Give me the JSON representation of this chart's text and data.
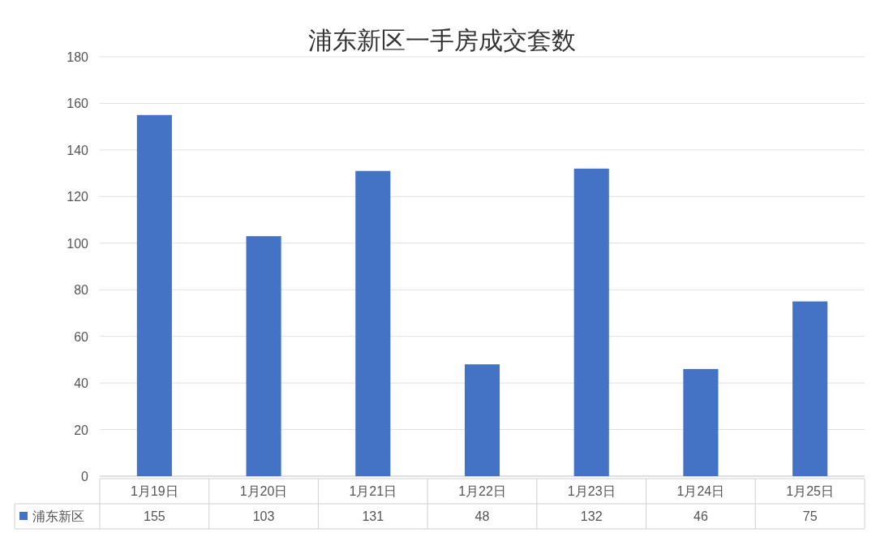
{
  "chart_data": {
    "type": "bar",
    "title": "浦东新区一手房成交套数",
    "categories": [
      "1月19日",
      "1月20日",
      "1月21日",
      "1月22日",
      "1月23日",
      "1月24日",
      "1月25日"
    ],
    "series": [
      {
        "name": "浦东新区",
        "color": "#4472c4",
        "values": [
          155,
          103,
          131,
          48,
          132,
          46,
          75
        ]
      }
    ],
    "ylim": [
      0,
      180
    ],
    "yticks": [
      0,
      20,
      40,
      60,
      80,
      100,
      120,
      140,
      160,
      180
    ],
    "grid": "y",
    "data_labels": true,
    "legend": "bottom"
  }
}
